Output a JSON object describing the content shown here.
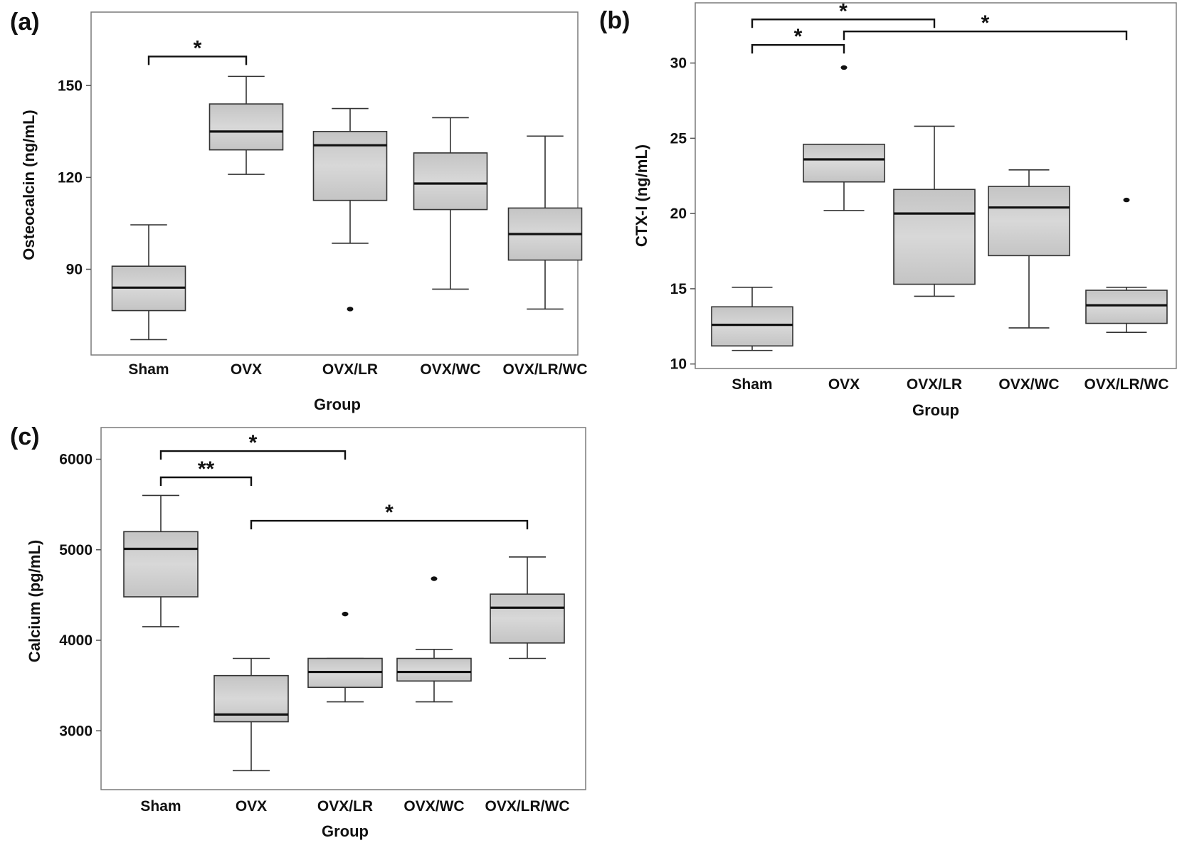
{
  "chart_data": [
    {
      "type": "box",
      "panel_label": "(a)",
      "title": "",
      "xlabel": "Group",
      "ylabel": "Osteocalcin (ng/mL)",
      "ylim": [
        62,
        174
      ],
      "yticks": [
        90,
        120,
        150
      ],
      "categories": [
        "Sham",
        "OVX",
        "OVX/LR",
        "OVX/WC",
        "OVX/LR/WC"
      ],
      "boxes": [
        {
          "whisker_low": 67,
          "q1": 76.5,
          "median": 84,
          "q3": 91,
          "whisker_high": 104.5,
          "outliers": []
        },
        {
          "whisker_low": 121,
          "q1": 129,
          "median": 135,
          "q3": 144,
          "whisker_high": 153,
          "outliers": []
        },
        {
          "whisker_low": 98.5,
          "q1": 112.5,
          "median": 130.5,
          "q3": 135,
          "whisker_high": 142.5,
          "outliers": [
            77
          ]
        },
        {
          "whisker_low": 83.5,
          "q1": 109.5,
          "median": 118,
          "q3": 128,
          "whisker_high": 139.5,
          "outliers": []
        },
        {
          "whisker_low": 77,
          "q1": 93,
          "median": 101.5,
          "q3": 110,
          "whisker_high": 133.5,
          "outliers": []
        }
      ],
      "significance": [
        {
          "from": "Sham",
          "to": "OVX",
          "y": 159.5,
          "label": "*"
        }
      ]
    },
    {
      "type": "box",
      "panel_label": "(b)",
      "title": "",
      "xlabel": "Group",
      "ylabel": "CTX-I (ng/mL)",
      "ylim": [
        9.7,
        34
      ],
      "yticks": [
        10,
        15,
        20,
        25,
        30
      ],
      "categories": [
        "Sham",
        "OVX",
        "OVX/LR",
        "OVX/WC",
        "OVX/LR/WC"
      ],
      "boxes": [
        {
          "whisker_low": 10.9,
          "q1": 11.2,
          "median": 12.6,
          "q3": 13.8,
          "whisker_high": 15.1,
          "outliers": []
        },
        {
          "whisker_low": 20.2,
          "q1": 22.1,
          "median": 23.6,
          "q3": 24.6,
          "whisker_high": 24.6,
          "outliers": [
            29.7
          ]
        },
        {
          "whisker_low": 14.5,
          "q1": 15.3,
          "median": 20,
          "q3": 21.6,
          "whisker_high": 25.8,
          "outliers": []
        },
        {
          "whisker_low": 12.4,
          "q1": 17.2,
          "median": 20.4,
          "q3": 21.8,
          "whisker_high": 22.9,
          "outliers": []
        },
        {
          "whisker_low": 12.1,
          "q1": 12.7,
          "median": 13.9,
          "q3": 14.9,
          "whisker_high": 15.1,
          "outliers": [
            20.9
          ]
        }
      ],
      "significance": [
        {
          "from": "Sham",
          "to": "OVX/LR",
          "y": 32.9,
          "label": "*"
        },
        {
          "from": "Sham",
          "to": "OVX",
          "y": 31.2,
          "label": "*"
        },
        {
          "from": "OVX",
          "to": "OVX/LR/WC",
          "y": 32.1,
          "label": "*"
        }
      ]
    },
    {
      "type": "box",
      "panel_label": "(c)",
      "title": "",
      "xlabel": "Group",
      "ylabel": "Calcium (pg/mL)",
      "ylim": [
        2350,
        6350
      ],
      "yticks": [
        3000,
        4000,
        5000,
        6000
      ],
      "categories": [
        "Sham",
        "OVX",
        "OVX/LR",
        "OVX/WC",
        "OVX/LR/WC"
      ],
      "boxes": [
        {
          "whisker_low": 4150,
          "q1": 4480,
          "median": 5010,
          "q3": 5200,
          "whisker_high": 5600,
          "outliers": []
        },
        {
          "whisker_low": 2560,
          "q1": 3100,
          "median": 3180,
          "q3": 3610,
          "whisker_high": 3800,
          "outliers": []
        },
        {
          "whisker_low": 3320,
          "q1": 3480,
          "median": 3650,
          "q3": 3800,
          "whisker_high": 3800,
          "outliers": [
            4290
          ]
        },
        {
          "whisker_low": 3320,
          "q1": 3550,
          "median": 3650,
          "q3": 3800,
          "whisker_high": 3900,
          "outliers": [
            4680
          ]
        },
        {
          "whisker_low": 3800,
          "q1": 3970,
          "median": 4360,
          "q3": 4510,
          "whisker_high": 4920,
          "outliers": []
        }
      ],
      "significance": [
        {
          "from": "Sham",
          "to": "OVX/LR",
          "y": 6090,
          "label": "*"
        },
        {
          "from": "Sham",
          "to": "OVX",
          "y": 5800,
          "label": "**"
        },
        {
          "from": "OVX",
          "to": "OVX/LR/WC",
          "y": 5320,
          "label": "*"
        }
      ]
    }
  ]
}
